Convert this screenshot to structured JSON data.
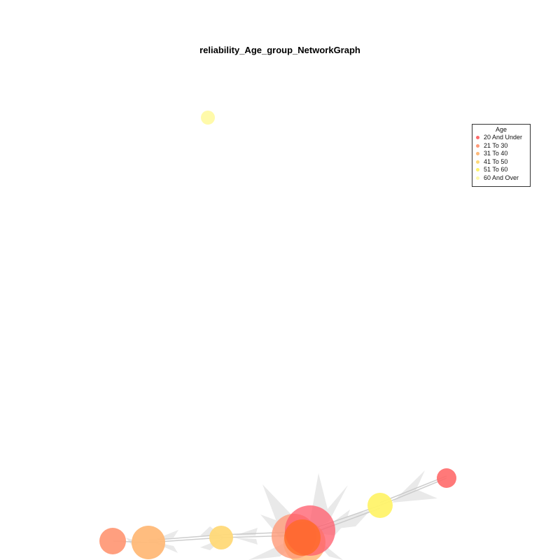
{
  "title": "reliability_Age_group_NetworkGraph",
  "legend": {
    "title": "Age",
    "items": [
      {
        "label": "20 And Under",
        "color": "#ff6a6a"
      },
      {
        "label": "21 To 30",
        "color": "#ff9a78"
      },
      {
        "label": "31 To 40",
        "color": "#ffb978"
      },
      {
        "label": "41 To 50",
        "color": "#ffd978"
      },
      {
        "label": "51 To 60",
        "color": "#fff36a"
      },
      {
        "label": "60 And Over",
        "color": "#fffaaa"
      }
    ]
  },
  "colors": {
    "edge": "#c8c8c8",
    "arrow": "#e8e8e8",
    "legend_border": "#333333"
  }
}
